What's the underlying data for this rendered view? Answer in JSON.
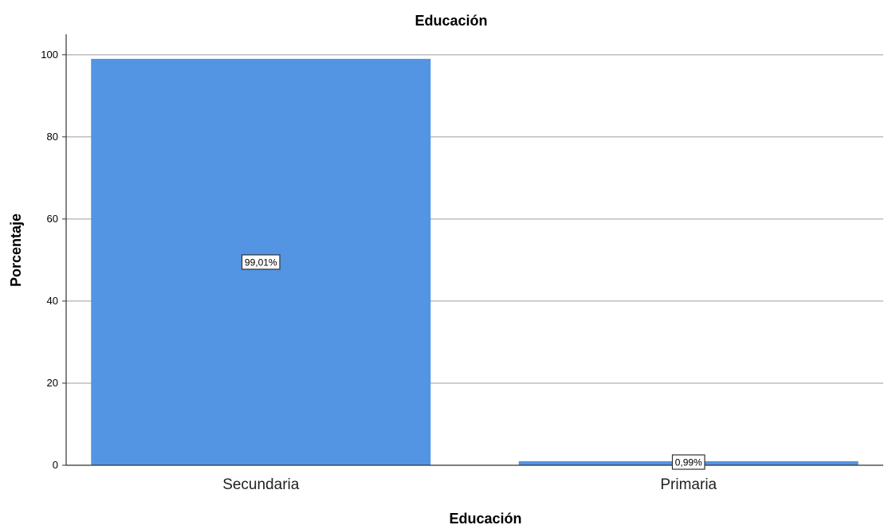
{
  "chart_data": {
    "type": "bar",
    "title": "Educación",
    "xlabel": "Educación",
    "ylabel": "Porcentaje",
    "categories": [
      "Secundaria",
      "Primaria"
    ],
    "values": [
      99.01,
      0.99
    ],
    "data_labels": [
      "99,01%",
      "0,99%"
    ],
    "ylim": [
      0,
      105
    ],
    "yticks": [
      0,
      20,
      40,
      60,
      80,
      100
    ],
    "grid": "horizontal",
    "legend": "none",
    "bar_color": "#5394E3"
  }
}
